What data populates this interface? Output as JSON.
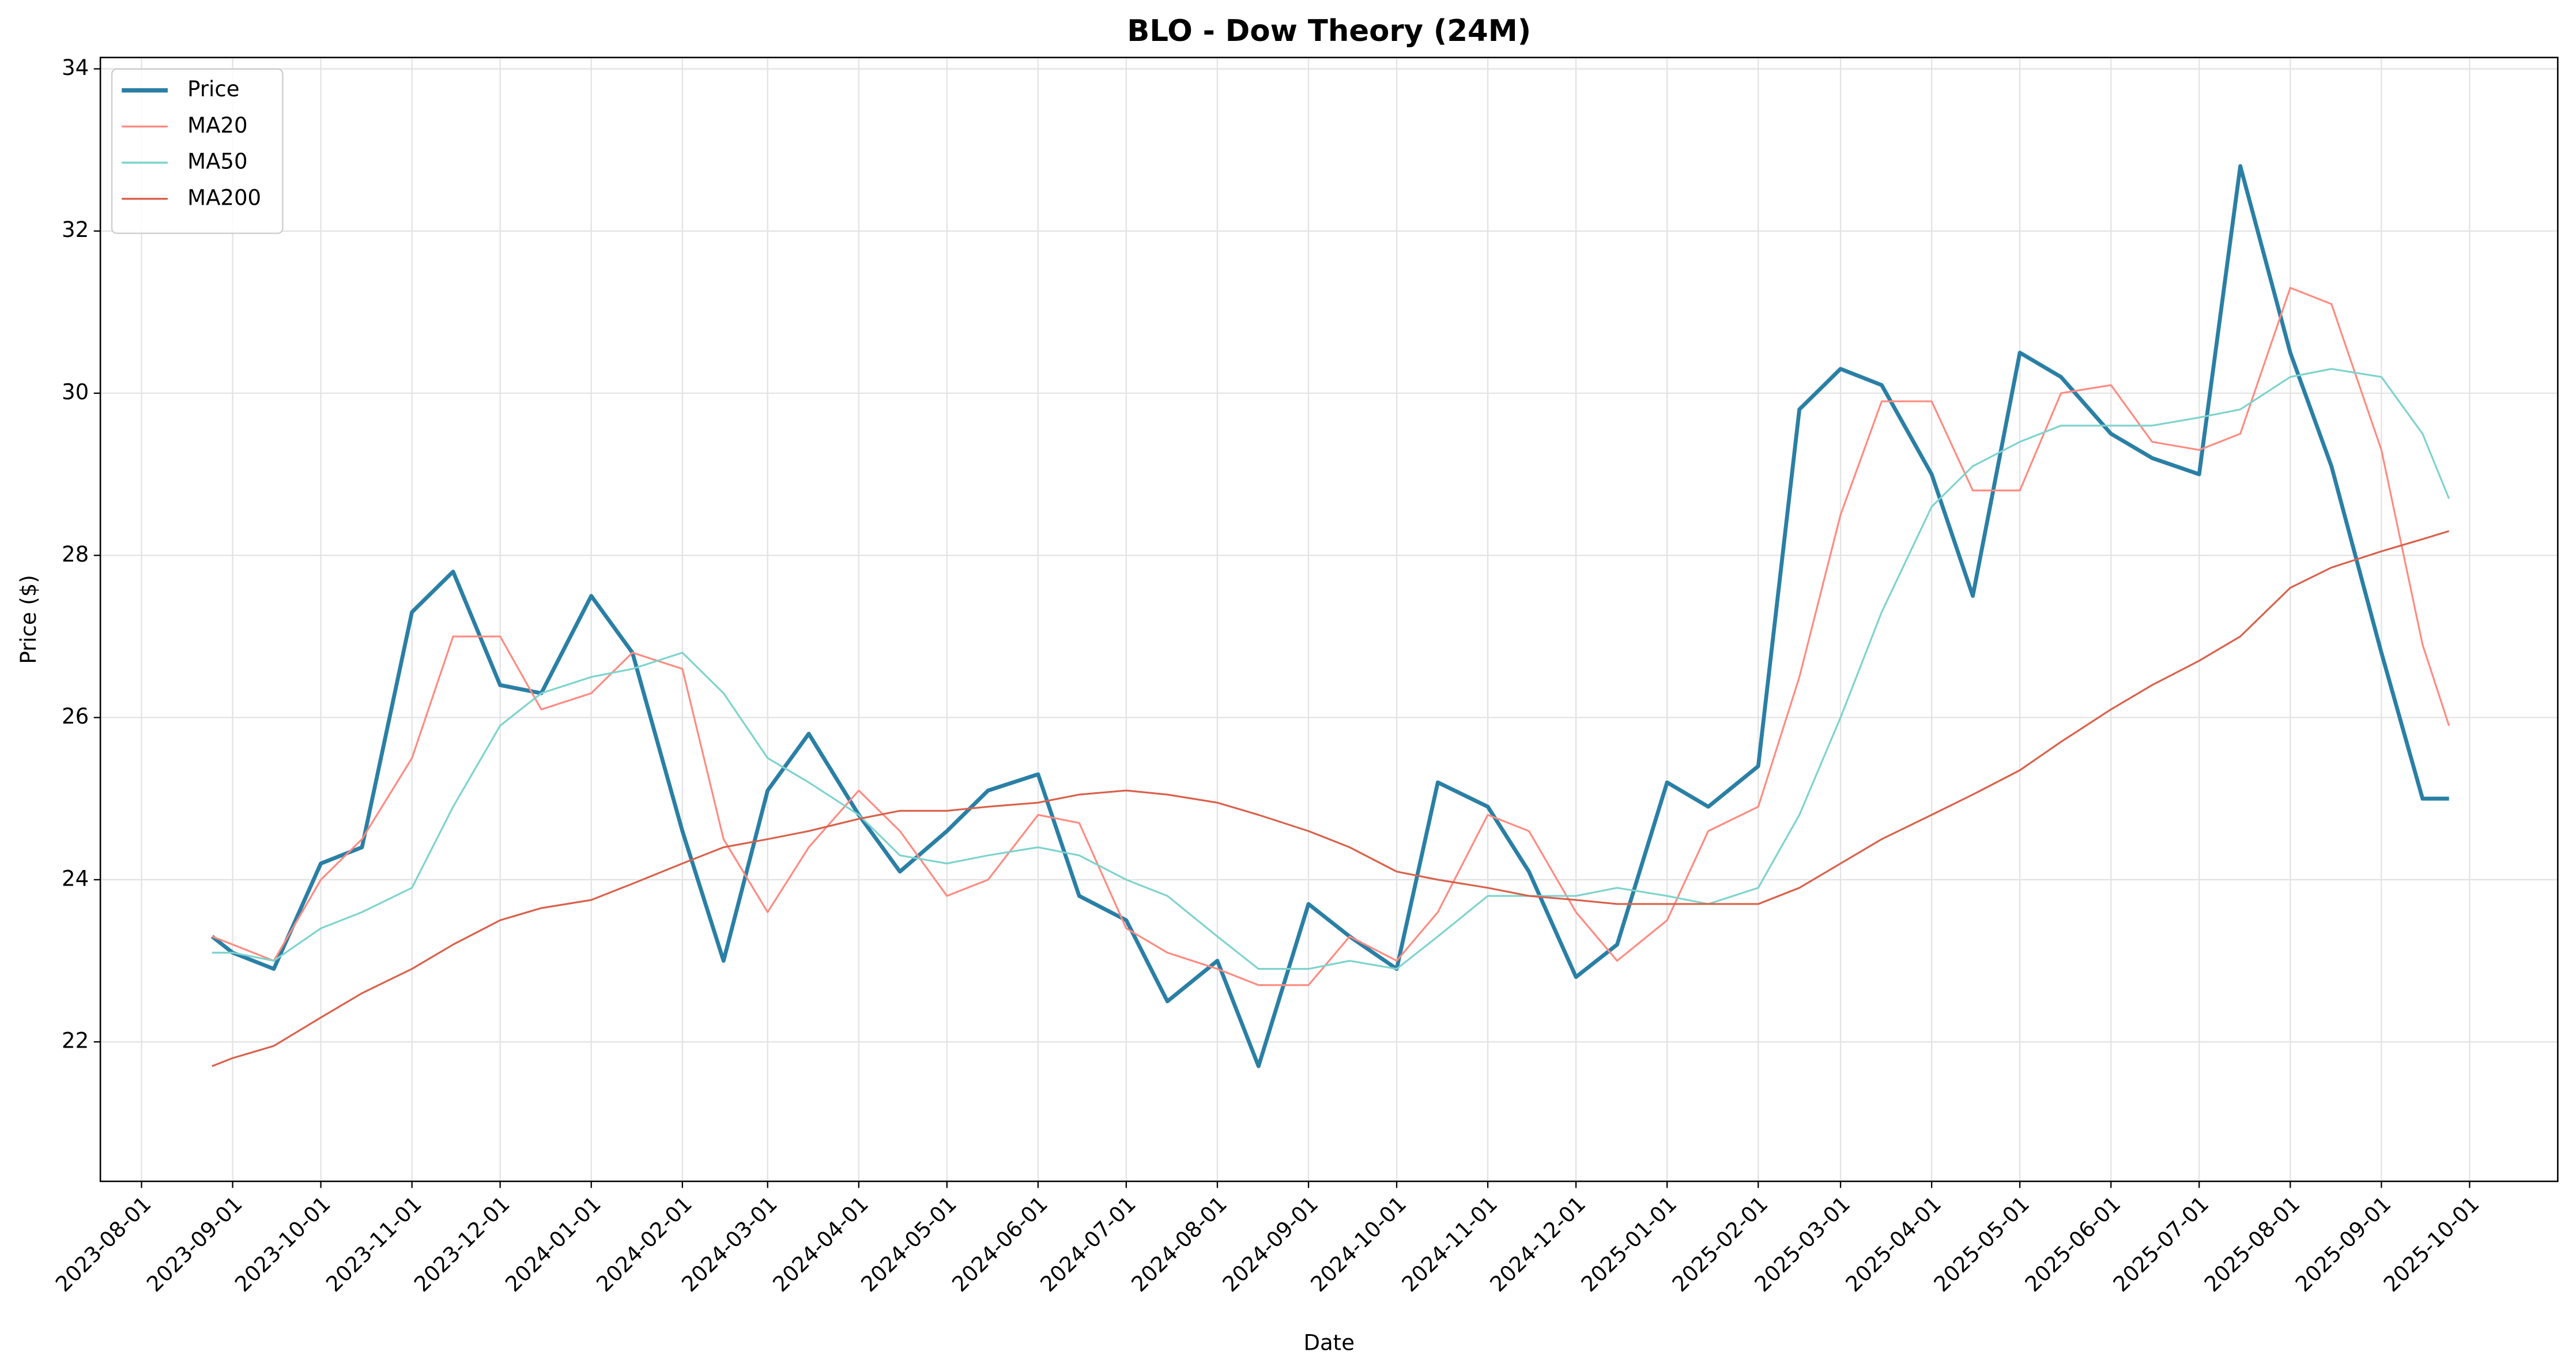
{
  "chart_data": {
    "type": "line",
    "title": "BLO - Dow Theory (24M)",
    "x_label": "Date",
    "y_label": "Price ($)",
    "x": [
      "2023-08-25",
      "2023-09-01",
      "2023-09-15",
      "2023-10-01",
      "2023-10-15",
      "2023-11-01",
      "2023-11-15",
      "2023-12-01",
      "2023-12-15",
      "2024-01-01",
      "2024-01-15",
      "2024-02-01",
      "2024-02-15",
      "2024-03-01",
      "2024-03-15",
      "2024-04-01",
      "2024-04-15",
      "2024-05-01",
      "2024-05-15",
      "2024-06-01",
      "2024-06-15",
      "2024-07-01",
      "2024-07-15",
      "2024-08-01",
      "2024-08-15",
      "2024-09-01",
      "2024-09-15",
      "2024-10-01",
      "2024-10-15",
      "2024-11-01",
      "2024-11-15",
      "2024-12-01",
      "2024-12-15",
      "2025-01-01",
      "2025-01-15",
      "2025-02-01",
      "2025-02-15",
      "2025-03-01",
      "2025-03-15",
      "2025-04-01",
      "2025-04-15",
      "2025-05-01",
      "2025-05-15",
      "2025-06-01",
      "2025-06-15",
      "2025-07-01",
      "2025-07-15",
      "2025-08-01",
      "2025-08-15",
      "2025-09-01",
      "2025-09-15",
      "2025-09-24"
    ],
    "series": [
      {
        "name": "Price",
        "color": "#2a7fa5",
        "width": 2.4,
        "values": [
          23.3,
          23.1,
          22.9,
          24.2,
          24.4,
          27.3,
          27.8,
          26.4,
          26.3,
          27.5,
          26.8,
          24.6,
          23.0,
          25.1,
          25.8,
          24.8,
          24.1,
          24.6,
          25.1,
          25.3,
          23.8,
          23.5,
          22.5,
          23.0,
          21.7,
          23.7,
          23.3,
          22.9,
          25.2,
          24.9,
          24.1,
          22.8,
          23.2,
          25.2,
          24.9,
          25.4,
          29.8,
          30.3,
          30.1,
          29.0,
          27.5,
          30.5,
          30.2,
          29.5,
          29.2,
          29.0,
          32.8,
          30.5,
          29.1,
          26.8,
          25.0,
          25.0
        ]
      },
      {
        "name": "MA20",
        "color": "#ff8a80",
        "width": 1.1,
        "values": [
          23.3,
          23.2,
          23.0,
          24.0,
          24.5,
          25.5,
          27.0,
          27.0,
          26.1,
          26.3,
          26.8,
          26.6,
          24.5,
          23.6,
          24.4,
          25.1,
          24.6,
          23.8,
          24.0,
          24.8,
          24.7,
          23.4,
          23.1,
          22.9,
          22.7,
          22.7,
          23.3,
          23.0,
          23.6,
          24.8,
          24.6,
          23.6,
          23.0,
          23.5,
          24.6,
          24.9,
          26.5,
          28.5,
          29.9,
          29.9,
          28.8,
          28.8,
          30.0,
          30.1,
          29.4,
          29.3,
          29.5,
          31.3,
          31.1,
          29.3,
          26.9,
          25.9
        ]
      },
      {
        "name": "MA50",
        "color": "#7dd3cc",
        "width": 1.1,
        "values": [
          23.1,
          23.1,
          23.0,
          23.4,
          23.6,
          23.9,
          24.9,
          25.9,
          26.3,
          26.5,
          26.6,
          26.8,
          26.3,
          25.5,
          25.2,
          24.8,
          24.3,
          24.2,
          24.3,
          24.4,
          24.3,
          24.0,
          23.8,
          23.3,
          22.9,
          22.9,
          23.0,
          22.9,
          23.3,
          23.8,
          23.8,
          23.8,
          23.9,
          23.8,
          23.7,
          23.9,
          24.8,
          26.0,
          27.3,
          28.6,
          29.1,
          29.4,
          29.6,
          29.6,
          29.6,
          29.7,
          29.8,
          30.2,
          30.3,
          30.2,
          29.5,
          28.7
        ]
      },
      {
        "name": "MA200",
        "color": "#d9604a",
        "width": 1.1,
        "values": [
          21.7,
          21.8,
          21.95,
          22.3,
          22.6,
          22.9,
          23.2,
          23.5,
          23.65,
          23.75,
          23.95,
          24.2,
          24.4,
          24.5,
          24.6,
          24.75,
          24.85,
          24.85,
          24.9,
          24.95,
          25.05,
          25.1,
          25.05,
          24.95,
          24.8,
          24.6,
          24.4,
          24.1,
          24.0,
          23.9,
          23.8,
          23.75,
          23.7,
          23.7,
          23.7,
          23.7,
          23.9,
          24.2,
          24.5,
          24.8,
          25.05,
          25.35,
          25.7,
          26.1,
          26.4,
          26.7,
          27.0,
          27.6,
          27.85,
          28.05,
          28.2,
          28.3
        ]
      }
    ],
    "xlim": [
      "2023-07-18",
      "2025-10-31"
    ],
    "xticks": [
      "2023-08-01",
      "2023-09-01",
      "2023-10-01",
      "2023-11-01",
      "2023-12-01",
      "2024-01-01",
      "2024-02-01",
      "2024-03-01",
      "2024-04-01",
      "2024-05-01",
      "2024-06-01",
      "2024-07-01",
      "2024-08-01",
      "2024-09-01",
      "2024-10-01",
      "2024-11-01",
      "2024-12-01",
      "2025-01-01",
      "2025-02-01",
      "2025-03-01",
      "2025-04-01",
      "2025-05-01",
      "2025-06-01",
      "2025-07-01",
      "2025-08-01",
      "2025-09-01",
      "2025-10-01"
    ],
    "ylim": [
      20.28,
      34.14
    ],
    "yticks": [
      22,
      24,
      26,
      28,
      30,
      32,
      34
    ],
    "grid": true,
    "legend": "upper left"
  }
}
